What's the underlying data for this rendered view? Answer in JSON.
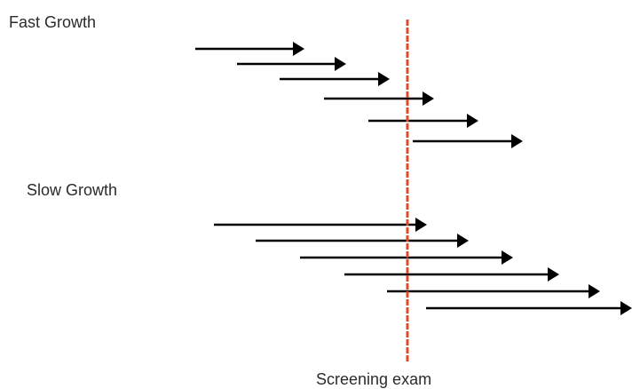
{
  "labels": {
    "fast_growth": "Fast Growth",
    "slow_growth": "Slow Growth",
    "screening_exam": "Screening exam"
  },
  "colors": {
    "arrow": "#000000",
    "screening_line": "#e0492a",
    "text": "#2b2b2b"
  },
  "groups": [
    {
      "name": "fast_growth",
      "arrow_count": 6
    },
    {
      "name": "slow_growth",
      "arrow_count": 6
    }
  ]
}
